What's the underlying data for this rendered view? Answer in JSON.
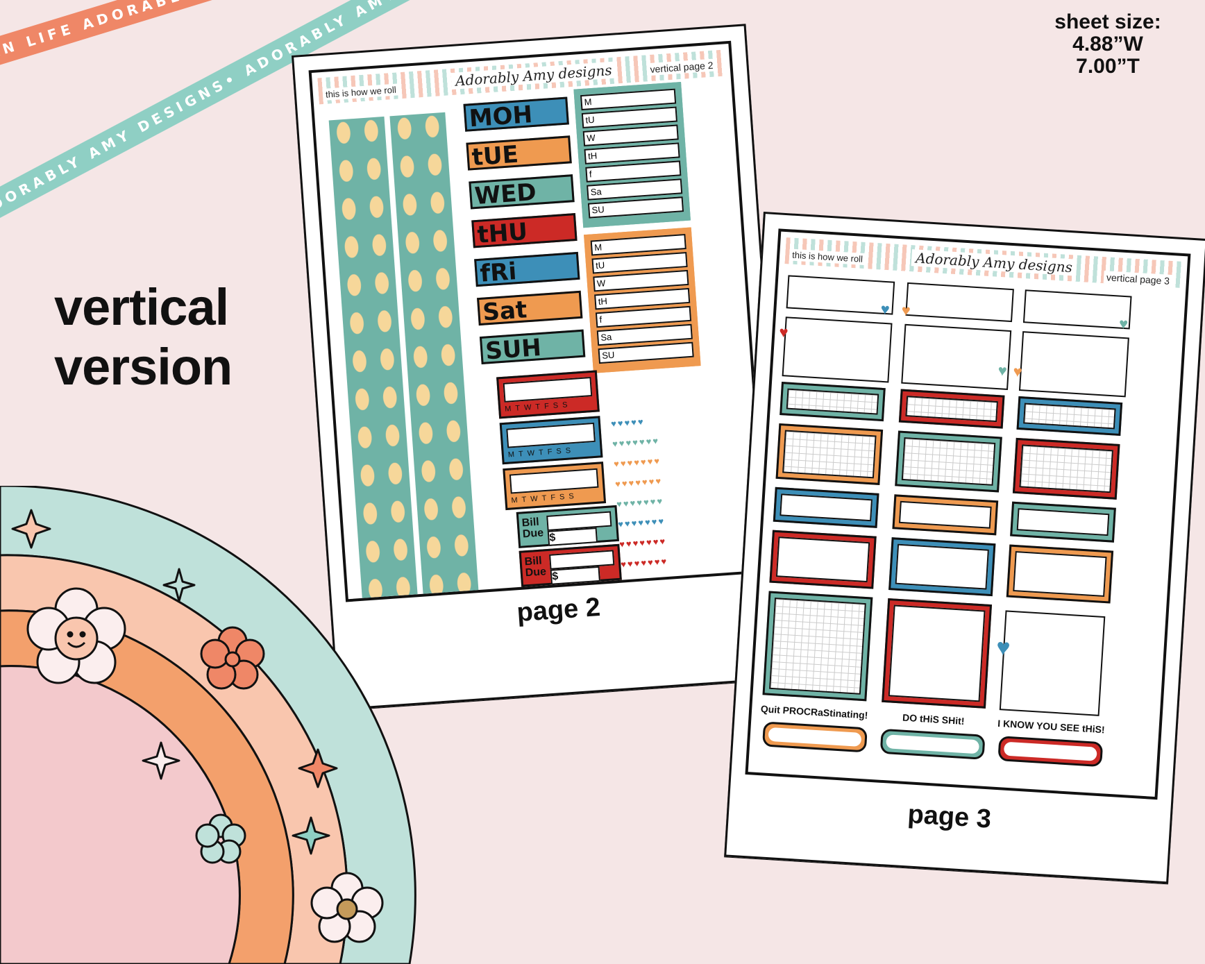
{
  "ribbons": {
    "top": "PLAN LIFE ADORABLY • PLAN LIFE ADORABLY • PLAN LIFE ADORABLY •",
    "bottom": "ADORABLY AMY DESIGNS• ADORABLY AMY DESIGNS• ADORABLY AMY DESIGNS•"
  },
  "headline": {
    "line1": "vertical",
    "line2": "version"
  },
  "sheet_size": {
    "label": "sheet size:",
    "width": "4.88”W",
    "height": "7.00”T"
  },
  "colors": {
    "teal": "#6fb3a6",
    "blue": "#3d8fb8",
    "orange": "#ef9a50",
    "red": "#cc2a26",
    "coral": "#ef8767",
    "mint": "#8fcfc4",
    "background": "#f5e6e6"
  },
  "page2": {
    "caption": "page 2",
    "sheet_title": "this is how we roll",
    "brand": "Adorably Amy designs",
    "sheet_label": "vertical page 2",
    "days": [
      "MOH",
      "tUE",
      "WED",
      "tHU",
      "fRi",
      "Sat",
      "SUH"
    ],
    "list_letters": [
      "M",
      "tU",
      "W",
      "tH",
      "f",
      "Sa",
      "SU"
    ],
    "habit_days": "MTWTFSS",
    "bill_label_1": "Bill",
    "bill_label_2": "Due",
    "dollar": "$"
  },
  "page3": {
    "caption": "page 3",
    "sheet_title": "this is how we roll",
    "brand": "Adorably Amy designs",
    "sheet_label": "vertical page 3",
    "quotes": [
      "Quit PROCRaStinating!",
      "DO tHiS SHit!",
      "I KNOW YOU SEE tHiS!"
    ]
  }
}
